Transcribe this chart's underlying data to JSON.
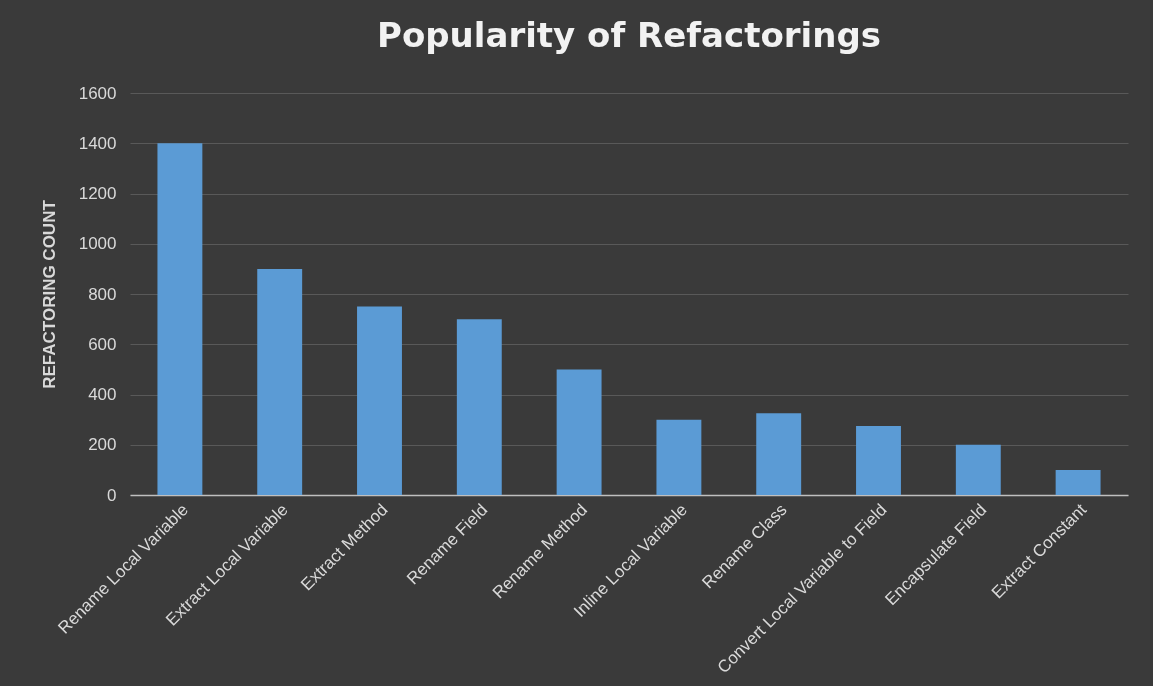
{
  "chart_data": {
    "type": "bar",
    "title": "Popularity of Refactorings",
    "ylabel": "REFACTORING COUNT",
    "categories": [
      "Rename Local Variable",
      "Extract Local Variable",
      "Extract Method",
      "Rename Field",
      "Rename Method",
      "Inline Local Variable",
      "Rename Class",
      "Convert Local Variable to Field",
      "Encapsulate Field",
      "Extract Constant"
    ],
    "values": [
      1400,
      900,
      750,
      700,
      500,
      300,
      325,
      275,
      200,
      100
    ],
    "color": "#5b9bd5",
    "ylim": [
      0,
      1600
    ],
    "yticks": [
      0,
      200,
      400,
      600,
      800,
      1000,
      1200,
      1400,
      1600
    ],
    "grid": "y"
  }
}
